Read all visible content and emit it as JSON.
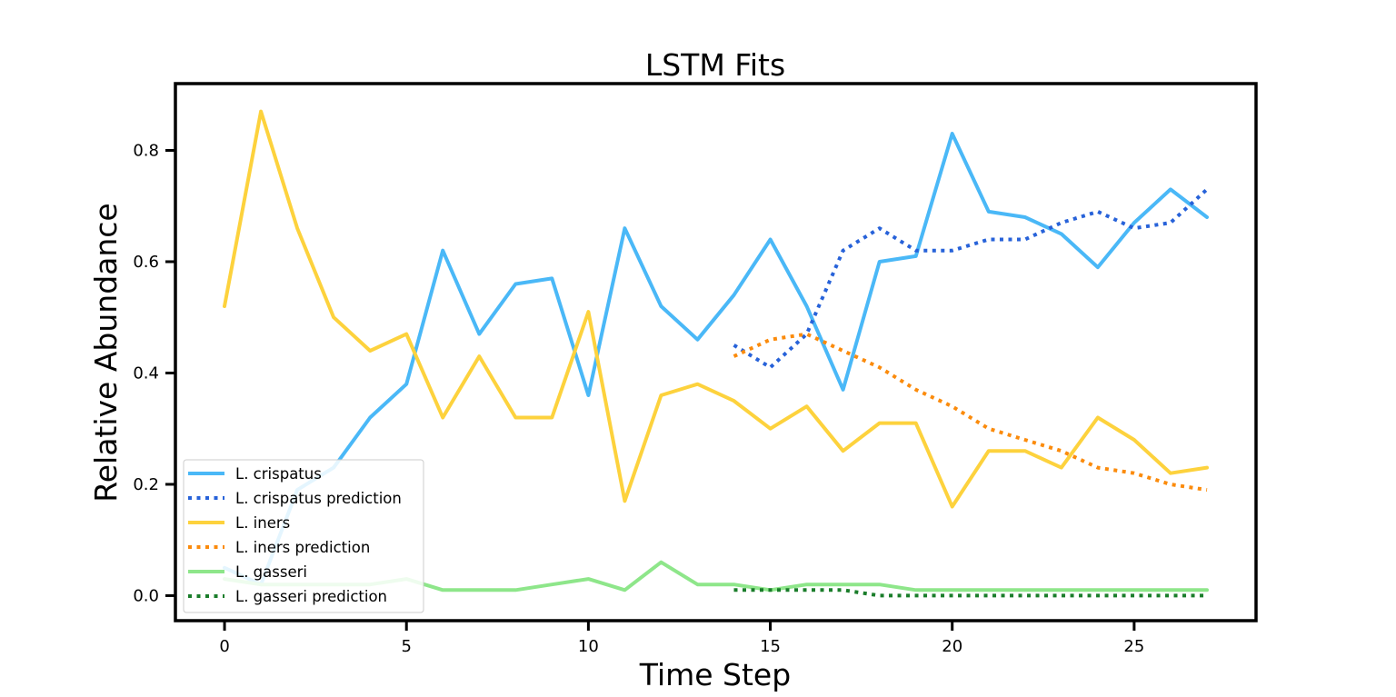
{
  "chart_data": {
    "type": "line",
    "title": "LSTM Fits",
    "xlabel": "Time Step",
    "ylabel": "Relative Abundance",
    "xlim": [
      -1.35,
      28.35
    ],
    "ylim": [
      -0.045,
      0.92
    ],
    "xticks": [
      0,
      5,
      10,
      15,
      20,
      25
    ],
    "yticks": [
      0.0,
      0.2,
      0.4,
      0.6,
      0.8
    ],
    "xtick_labels": [
      "0",
      "5",
      "10",
      "15",
      "20",
      "25"
    ],
    "ytick_labels": [
      "0.0",
      "0.2",
      "0.4",
      "0.6",
      "0.8"
    ],
    "grid": false,
    "legend_position": "lower-left",
    "series": [
      {
        "name": "L. crispatus",
        "color": "#4ab8f7",
        "style": "solid",
        "x": [
          0,
          1,
          2,
          3,
          4,
          5,
          6,
          7,
          8,
          9,
          10,
          11,
          12,
          13,
          14,
          15,
          16,
          17,
          18,
          19,
          20,
          21,
          22,
          23,
          24,
          25,
          26,
          27
        ],
        "y": [
          0.05,
          0.02,
          0.19,
          0.23,
          0.32,
          0.38,
          0.62,
          0.47,
          0.56,
          0.57,
          0.36,
          0.66,
          0.52,
          0.46,
          0.54,
          0.64,
          0.52,
          0.37,
          0.6,
          0.61,
          0.83,
          0.69,
          0.68,
          0.65,
          0.59,
          0.67,
          0.73,
          0.68
        ]
      },
      {
        "name": "L. crispatus prediction",
        "color": "#2762d9",
        "style": "dotted",
        "x": [
          14,
          15,
          16,
          17,
          18,
          19,
          20,
          21,
          22,
          23,
          24,
          25,
          26,
          27
        ],
        "y": [
          0.45,
          0.41,
          0.47,
          0.62,
          0.66,
          0.62,
          0.62,
          0.64,
          0.64,
          0.67,
          0.69,
          0.66,
          0.67,
          0.73
        ]
      },
      {
        "name": "L. iners",
        "color": "#fdd23d",
        "style": "solid",
        "x": [
          0,
          1,
          2,
          3,
          4,
          5,
          6,
          7,
          8,
          9,
          10,
          11,
          12,
          13,
          14,
          15,
          16,
          17,
          18,
          19,
          20,
          21,
          22,
          23,
          24,
          25,
          26,
          27
        ],
        "y": [
          0.52,
          0.87,
          0.66,
          0.5,
          0.44,
          0.47,
          0.32,
          0.43,
          0.32,
          0.32,
          0.51,
          0.17,
          0.36,
          0.38,
          0.35,
          0.3,
          0.34,
          0.26,
          0.31,
          0.31,
          0.16,
          0.26,
          0.26,
          0.23,
          0.32,
          0.28,
          0.22,
          0.23
        ]
      },
      {
        "name": "L. iners prediction",
        "color": "#fb8b0c",
        "style": "dotted",
        "x": [
          14,
          15,
          16,
          17,
          18,
          19,
          20,
          21,
          22,
          23,
          24,
          25,
          26,
          27
        ],
        "y": [
          0.43,
          0.46,
          0.47,
          0.44,
          0.41,
          0.37,
          0.34,
          0.3,
          0.28,
          0.26,
          0.23,
          0.22,
          0.2,
          0.19
        ]
      },
      {
        "name": "L. gasseri",
        "color": "#8ee68a",
        "style": "solid",
        "x": [
          0,
          1,
          2,
          3,
          4,
          5,
          6,
          7,
          8,
          9,
          10,
          11,
          12,
          13,
          14,
          15,
          16,
          17,
          18,
          19,
          20,
          21,
          22,
          23,
          24,
          25,
          26,
          27
        ],
        "y": [
          0.03,
          0.02,
          0.02,
          0.02,
          0.02,
          0.03,
          0.01,
          0.01,
          0.01,
          0.02,
          0.03,
          0.01,
          0.06,
          0.02,
          0.02,
          0.01,
          0.02,
          0.02,
          0.02,
          0.01,
          0.01,
          0.01,
          0.01,
          0.01,
          0.01,
          0.01,
          0.01,
          0.01
        ]
      },
      {
        "name": "L. gasseri prediction",
        "color": "#1a7d2a",
        "style": "dotted",
        "x": [
          14,
          15,
          16,
          17,
          18,
          19,
          20,
          21,
          22,
          23,
          24,
          25,
          26,
          27
        ],
        "y": [
          0.01,
          0.01,
          0.01,
          0.01,
          0.0,
          0.0,
          0.0,
          0.0,
          0.0,
          0.0,
          0.0,
          0.0,
          0.0,
          0.0
        ]
      }
    ]
  }
}
